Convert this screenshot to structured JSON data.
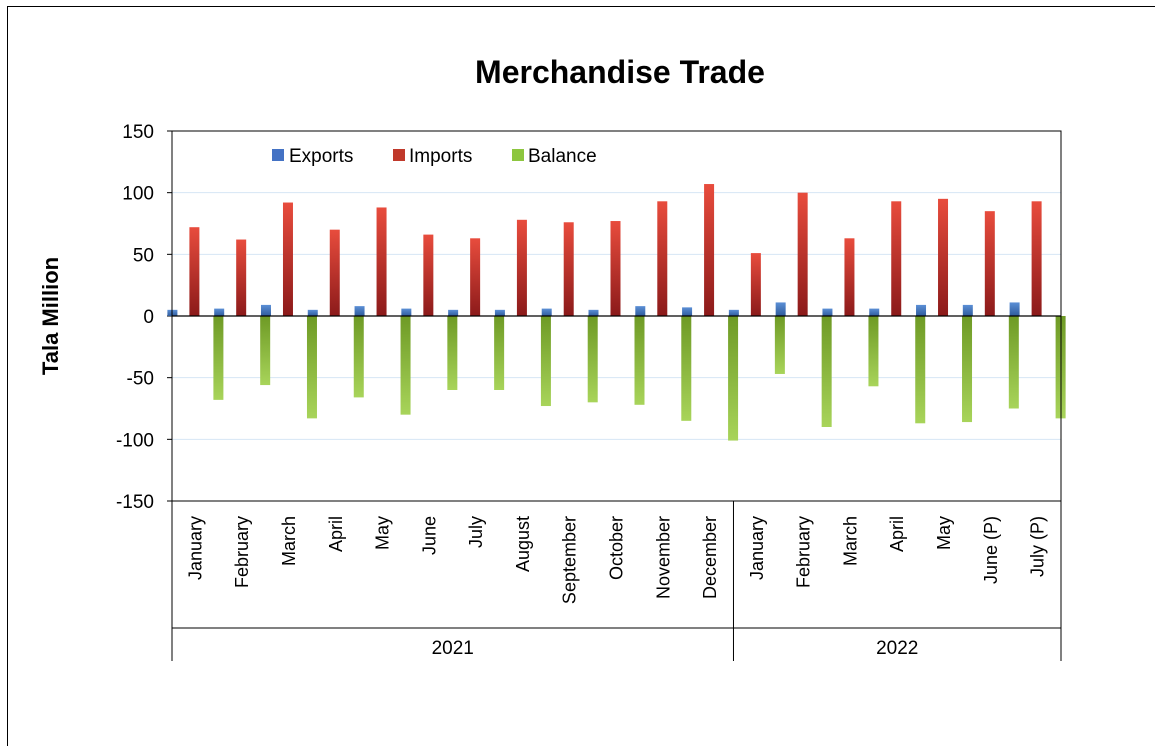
{
  "chart_data": {
    "type": "bar",
    "title": "Merchandise Trade",
    "ylabel": "Tala Million",
    "ylim": [
      -150,
      150
    ],
    "yticks": [
      150,
      100,
      50,
      0,
      -50,
      -100,
      -150
    ],
    "grid": true,
    "legend_position": "top-left",
    "categories": [
      "January",
      "February",
      "March",
      "April",
      "May",
      "June",
      "July",
      "August",
      "September",
      "October",
      "November",
      "December",
      "January",
      "February",
      "March",
      "April",
      "May",
      "June (P)",
      "July (P)"
    ],
    "groups": [
      {
        "label": "2021",
        "count": 12
      },
      {
        "label": "2022",
        "count": 7
      }
    ],
    "series": [
      {
        "name": "Exports",
        "color": "#4472c4",
        "values": [
          5,
          6,
          9,
          5,
          8,
          6,
          5,
          5,
          6,
          5,
          8,
          7,
          5,
          11,
          6,
          6,
          9,
          9,
          11
        ]
      },
      {
        "name": "Imports",
        "color": "#c0392b",
        "values": [
          72,
          62,
          92,
          70,
          88,
          66,
          63,
          78,
          76,
          77,
          93,
          107,
          51,
          100,
          63,
          93,
          95,
          85,
          93
        ]
      },
      {
        "name": "Balance",
        "color": "#8dc63f",
        "values": [
          -68,
          -56,
          -83,
          -66,
          -80,
          -60,
          -60,
          -73,
          -70,
          -72,
          -85,
          -101,
          -47,
          -90,
          -57,
          -87,
          -86,
          -75,
          -83
        ]
      }
    ]
  }
}
